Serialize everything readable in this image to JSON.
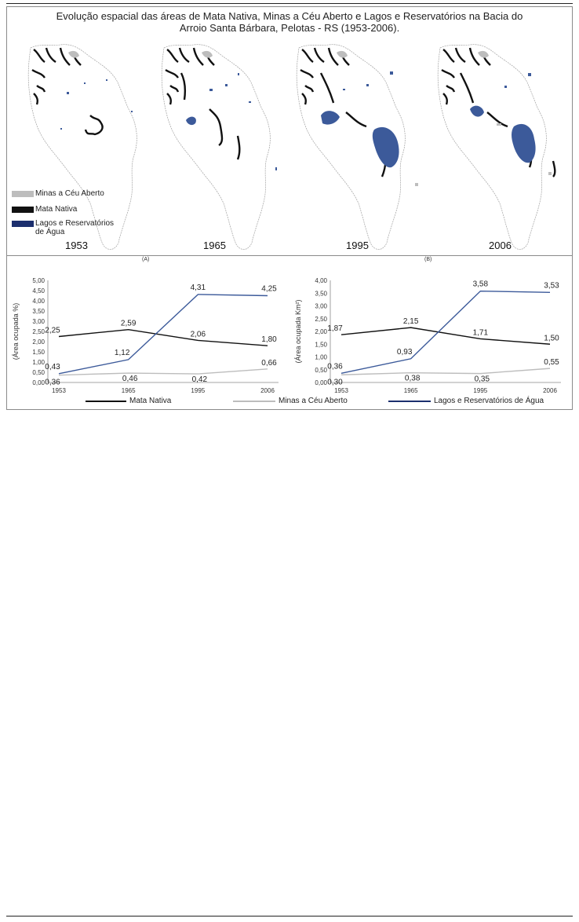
{
  "figure": {
    "title_line1": "Evolução espacial das áreas de Mata Nativa, Minas a Céu Aberto e Lagos e Reservatórios na Bacia do",
    "title_line2": "Arroio Santa Bárbara, Pelotas - RS (1953-2006).",
    "years": [
      "1953",
      "1965",
      "1995",
      "2006"
    ],
    "legend": {
      "minas": "Minas a Céu Aberto",
      "mata": "Mata Nativa",
      "lagos_line1": "Lagos e Reservatórios",
      "lagos_line2": "de Água"
    },
    "panel_a": "(A)",
    "panel_b": "(B)",
    "colors": {
      "mata": "#111111",
      "minas": "#bdbdbd",
      "lagos": "#3c5a9a",
      "boundary": "#9a9a9a"
    }
  },
  "chart_data": [
    {
      "type": "line",
      "x": [
        "1953",
        "1965",
        "1995",
        "2006"
      ],
      "ylabel": "(Área ocupada %)",
      "ylim": [
        0,
        5
      ],
      "yticks": [
        "0,00",
        "0,50",
        "1,00",
        "1,50",
        "2,00",
        "2,50",
        "3,00",
        "3,50",
        "4,00",
        "4,50",
        "5,00"
      ],
      "series": [
        {
          "name": "Mata Nativa",
          "color": "#111111",
          "values": [
            2.25,
            2.59,
            2.06,
            1.8
          ],
          "labels": [
            "2,25",
            "2,59",
            "2,06",
            "1,80"
          ]
        },
        {
          "name": "Minas a Céu Aberto",
          "color": "#bdbdbd",
          "values": [
            0.36,
            0.46,
            0.42,
            0.66
          ],
          "labels": [
            "0,36",
            "0,46",
            "0,42",
            "0,66"
          ]
        },
        {
          "name": "Lagos e Reservatórios de Água",
          "color": "#3c5a9a",
          "values": [
            0.43,
            1.12,
            4.31,
            4.25
          ],
          "labels": [
            "0,43",
            "1,12",
            "4,31",
            "4,25"
          ]
        }
      ]
    },
    {
      "type": "line",
      "x": [
        "1953",
        "1965",
        "1995",
        "2006"
      ],
      "ylabel": "(Área ocupada Km²)",
      "ylim": [
        0,
        4
      ],
      "yticks": [
        "0,00",
        "0,50",
        "1,00",
        "1,50",
        "2,00",
        "2,50",
        "3,00",
        "3,50",
        "4,00"
      ],
      "series": [
        {
          "name": "Mata Nativa",
          "color": "#111111",
          "values": [
            1.87,
            2.15,
            1.71,
            1.5
          ],
          "labels": [
            "1,87",
            "2,15",
            "1,71",
            "1,50"
          ]
        },
        {
          "name": "Minas a Céu Aberto",
          "color": "#bdbdbd",
          "values": [
            0.3,
            0.38,
            0.35,
            0.55
          ],
          "labels": [
            "0,30",
            "0,38",
            "0,35",
            "0,55"
          ]
        },
        {
          "name": "Lagos e Reservatórios de Água",
          "color": "#3c5a9a",
          "values": [
            0.36,
            0.93,
            3.58,
            3.53
          ],
          "labels": [
            "0,36",
            "0,93",
            "3,58",
            "3,53"
          ]
        }
      ]
    }
  ]
}
